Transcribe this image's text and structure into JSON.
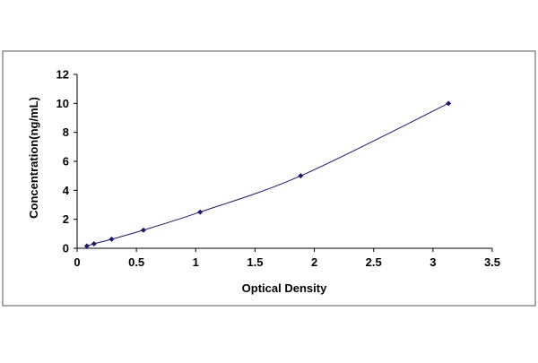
{
  "chart_data": {
    "type": "scatter",
    "title": "",
    "xlabel": "Optical Density",
    "ylabel": "Concentration(ng/mL)",
    "xlim": [
      0,
      3.5
    ],
    "ylim": [
      0,
      12
    ],
    "xticks": [
      "0",
      "0.5",
      "1",
      "1.5",
      "2",
      "2.5",
      "3",
      "3.5"
    ],
    "yticks": [
      "0",
      "2",
      "4",
      "6",
      "8",
      "10",
      "12"
    ],
    "grid": false,
    "legend": "none",
    "fit_line": true,
    "colors": {
      "line": "#1a1a6e",
      "points": "#1a1a6e",
      "frame": "#000000"
    },
    "series": [
      {
        "x": [
          0.082,
          0.143,
          0.291,
          0.559,
          1.037,
          1.885,
          3.131
        ],
        "y": [
          0.156,
          0.312,
          0.625,
          1.25,
          2.5,
          5,
          10
        ]
      }
    ]
  }
}
